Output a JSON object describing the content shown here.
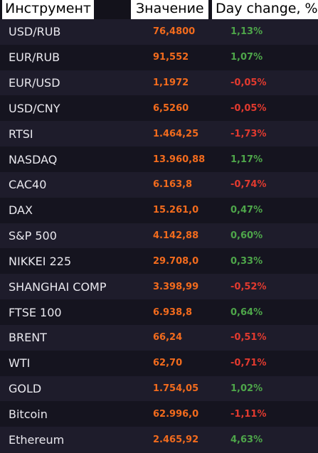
{
  "header": {
    "instrument": "Инструмент",
    "value": "Значение",
    "day_change": "Day change, %"
  },
  "colors": {
    "value": "#f26b1d",
    "positive": "#4ea64a",
    "negative": "#e23a2f"
  },
  "rows": [
    {
      "name": "USD/RUB",
      "value": "76,4800",
      "change": "1,13%",
      "dir": "up"
    },
    {
      "name": "EUR/RUB",
      "value": "91,552",
      "change": "1,07%",
      "dir": "up"
    },
    {
      "name": "EUR/USD",
      "value": "1,1972",
      "change": "-0,05%",
      "dir": "down"
    },
    {
      "name": "USD/CNY",
      "value": "6,5260",
      "change": "-0,05%",
      "dir": "down"
    },
    {
      "name": "RTSI",
      "value": "1.464,25",
      "change": "-1,73%",
      "dir": "down"
    },
    {
      "name": "NASDAQ",
      "value": "13.960,88",
      "change": "1,17%",
      "dir": "up"
    },
    {
      "name": "CAC40",
      "value": "6.163,8",
      "change": "-0,74%",
      "dir": "down"
    },
    {
      "name": "DAX",
      "value": "15.261,0",
      "change": "0,47%",
      "dir": "up"
    },
    {
      "name": "S&P 500",
      "value": "4.142,88",
      "change": "0,60%",
      "dir": "up"
    },
    {
      "name": "NIKKEI 225",
      "value": "29.708,0",
      "change": "0,33%",
      "dir": "up"
    },
    {
      "name": "SHANGHAI COMP",
      "value": "3.398,99",
      "change": "-0,52%",
      "dir": "down"
    },
    {
      "name": "FTSE 100",
      "value": "6.938,8",
      "change": "0,64%",
      "dir": "up"
    },
    {
      "name": "BRENT",
      "value": "66,24",
      "change": "-0,51%",
      "dir": "down"
    },
    {
      "name": "WTI",
      "value": "62,70",
      "change": "-0,71%",
      "dir": "down"
    },
    {
      "name": "GOLD",
      "value": "1.754,05",
      "change": "1,02%",
      "dir": "up"
    },
    {
      "name": "Bitcoin",
      "value": "62.996,0",
      "change": "-1,11%",
      "dir": "down"
    },
    {
      "name": "Ethereum",
      "value": "2.465,92",
      "change": "4,63%",
      "dir": "up"
    }
  ]
}
